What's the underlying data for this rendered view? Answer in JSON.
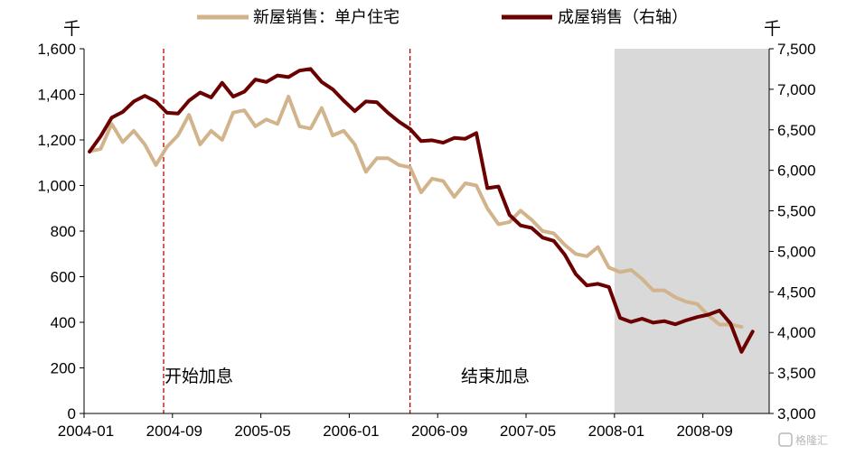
{
  "chart_data": {
    "type": "line",
    "left_unit": "千",
    "right_unit": "千",
    "y_left": {
      "min": 0,
      "max": 1600,
      "step": 200,
      "tick_labels": [
        "0",
        "200",
        "400",
        "600",
        "800",
        "1,000",
        "1,200",
        "1,400",
        "1,600"
      ]
    },
    "y_right": {
      "min": 3000,
      "max": 7500,
      "step": 500,
      "tick_labels": [
        "3,000",
        "3,500",
        "4,000",
        "4,500",
        "5,000",
        "5,500",
        "6,000",
        "6,500",
        "7,000",
        "7,500"
      ]
    },
    "x_tick_labels": [
      "2004-01",
      "2004-09",
      "2005-05",
      "2006-01",
      "2006-09",
      "2007-05",
      "2008-01",
      "2008-09"
    ],
    "x_tick_months": [
      0,
      8,
      16,
      24,
      32,
      40,
      48,
      56
    ],
    "month_count": 62,
    "legend_position": "top",
    "series": [
      {
        "name": "新屋销售：单户住宅",
        "axis": "left",
        "color": "#D2B48C",
        "values": [
          1150,
          1160,
          1270,
          1190,
          1240,
          1180,
          1090,
          1170,
          1220,
          1310,
          1180,
          1240,
          1200,
          1320,
          1330,
          1260,
          1290,
          1270,
          1390,
          1260,
          1250,
          1340,
          1220,
          1240,
          1180,
          1060,
          1120,
          1120,
          1090,
          1080,
          970,
          1030,
          1020,
          950,
          1010,
          1000,
          900,
          830,
          840,
          890,
          850,
          800,
          790,
          740,
          700,
          690,
          730,
          640,
          620,
          630,
          590,
          540,
          540,
          510,
          490,
          480,
          430,
          390,
          390,
          380
        ]
      },
      {
        "name": "成屋销售（右轴）",
        "axis": "right",
        "color": "#6B0000",
        "values": [
          6230,
          6420,
          6650,
          6720,
          6850,
          6920,
          6850,
          6710,
          6700,
          6860,
          6960,
          6900,
          7080,
          6910,
          6970,
          7120,
          7090,
          7170,
          7150,
          7230,
          7250,
          7090,
          7000,
          6860,
          6730,
          6850,
          6840,
          6710,
          6600,
          6510,
          6360,
          6370,
          6340,
          6400,
          6390,
          6460,
          5780,
          5800,
          5450,
          5320,
          5290,
          5170,
          5130,
          4960,
          4720,
          4580,
          4600,
          4560,
          4180,
          4130,
          4170,
          4120,
          4140,
          4100,
          4150,
          4190,
          4220,
          4270,
          4110,
          3760,
          4010
        ]
      }
    ],
    "shaded_region": {
      "start_month": 48,
      "end_month": 62
    },
    "annotations": [
      {
        "label": "开始加息",
        "month": 6.7
      },
      {
        "label": "结束加息",
        "month": 29
      }
    ]
  },
  "watermark": "格隆汇"
}
